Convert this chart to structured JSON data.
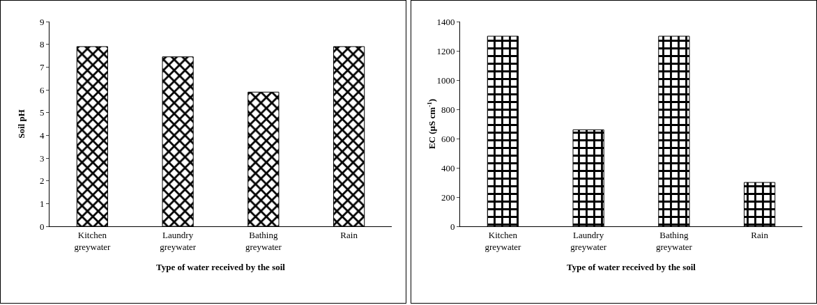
{
  "chart_data": [
    {
      "type": "bar",
      "xlabel": "Type of water received by the soil",
      "ylabel": "Soil pH",
      "categories": [
        "Kitchen greywater",
        "Laundry greywater",
        "Bathing greywater",
        "Rain"
      ],
      "values": [
        7.9,
        7.45,
        5.9,
        7.9
      ],
      "color": "#000000",
      "ylim": [
        0,
        9
      ],
      "yticks": [
        0,
        1,
        2,
        3,
        4,
        5,
        6,
        7,
        8,
        9
      ],
      "grid": false
    },
    {
      "type": "bar",
      "xlabel": "Type of water received by the soil",
      "ylabel": "EC (µS cm$^{-1}$)",
      "categories": [
        "Kitchen greywater",
        "Laundry greywater",
        "Bathing greywater",
        "Rain"
      ],
      "values": [
        1300,
        660,
        1300,
        300
      ],
      "color": "#000000",
      "ylim": [
        0,
        1400
      ],
      "yticks": [
        0,
        200,
        400,
        600,
        800,
        1000,
        1200,
        1400
      ],
      "grid": false
    }
  ]
}
